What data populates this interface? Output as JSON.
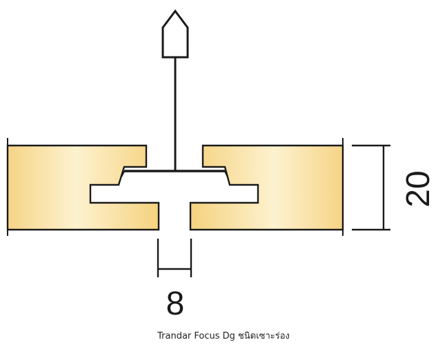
{
  "diagram": {
    "dimension_height": "20",
    "dimension_gap": "8",
    "caption": "Trandar Focus Dg ชนิดเซาะร่อง"
  },
  "colors": {
    "panel_edge": "#f6d58a",
    "panel_center": "#fdf3d2",
    "line": "#1a1a1a"
  }
}
